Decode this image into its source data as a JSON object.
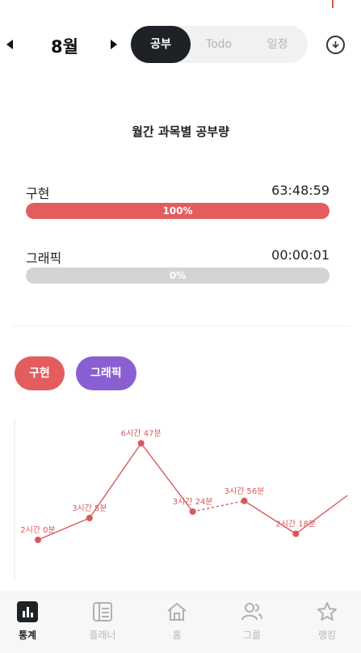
{
  "header": {
    "prev_icon": "caret-left-icon",
    "next_icon": "caret-right-icon",
    "month": "8월",
    "tabs": [
      {
        "label": "공부",
        "active": true
      },
      {
        "label": "Todo",
        "active": false
      },
      {
        "label": "일정",
        "active": false
      }
    ],
    "download_icon": "download-icon"
  },
  "summary": {
    "title": "월간 과목별 공부량",
    "subjects": [
      {
        "name": "구현",
        "time": "63:48:59",
        "percent_label": "100%",
        "percent": 100,
        "color": "#e35d5f"
      },
      {
        "name": "그래픽",
        "time": "00:00:01",
        "percent_label": "0%",
        "percent": 0,
        "color": "#d4d4d4"
      }
    ]
  },
  "chips": [
    {
      "label": "구현",
      "color": "#e35d5f"
    },
    {
      "label": "그래픽",
      "color": "#8a5fd1"
    }
  ],
  "chart_data": {
    "type": "line",
    "series": [
      {
        "name": "구현",
        "color": "#d8585b",
        "points": [
          {
            "hours": 2.0,
            "label": "2시간 0분"
          },
          {
            "hours": 3.08,
            "label": "3시간 5분"
          },
          {
            "hours": 6.78,
            "label": "6시간 47분"
          },
          {
            "hours": 3.4,
            "label": "3시간 24분"
          },
          {
            "hours": 3.93,
            "label": "3시간 56분"
          },
          {
            "hours": 2.3,
            "label": "2시간 18분"
          },
          {
            "hours": 4.2,
            "label": ""
          }
        ]
      }
    ],
    "ylim": [
      0,
      8
    ],
    "dashed_segments": [
      3
    ]
  },
  "bottom_nav": [
    {
      "label": "통계",
      "icon": "bar-chart-icon",
      "active": true
    },
    {
      "label": "플래너",
      "icon": "planner-icon",
      "active": false
    },
    {
      "label": "홈",
      "icon": "home-icon",
      "active": false
    },
    {
      "label": "그룹",
      "icon": "group-icon",
      "active": false
    },
    {
      "label": "랭킹",
      "icon": "star-icon",
      "active": false
    }
  ]
}
